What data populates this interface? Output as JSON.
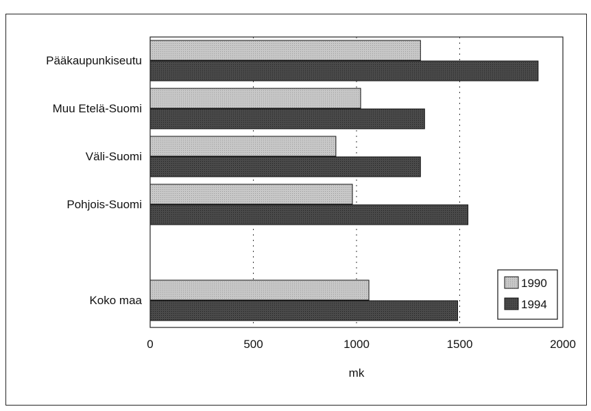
{
  "chart_data": {
    "type": "bar",
    "orientation": "horizontal",
    "categories": [
      "Pääkaupunkiseutu",
      "Muu Etelä-Suomi",
      "Väli-Suomi",
      "Pohjois-Suomi",
      "Koko maa"
    ],
    "series": [
      {
        "name": "1990",
        "values": [
          1310,
          1020,
          900,
          980,
          1060
        ],
        "color": "#c8c8c8"
      },
      {
        "name": "1994",
        "values": [
          1880,
          1330,
          1310,
          1540,
          1490
        ],
        "color": "#4a4a4a"
      }
    ],
    "xlabel": "mk",
    "ylabel": "",
    "title": "",
    "xlim": [
      0,
      2000
    ],
    "xticks": [
      0,
      500,
      1000,
      1500,
      2000
    ],
    "xtick_labels": [
      "0",
      "500",
      "1000",
      "1500",
      "2000"
    ],
    "grid": "vertical dotted",
    "legend": "bottom-right"
  }
}
